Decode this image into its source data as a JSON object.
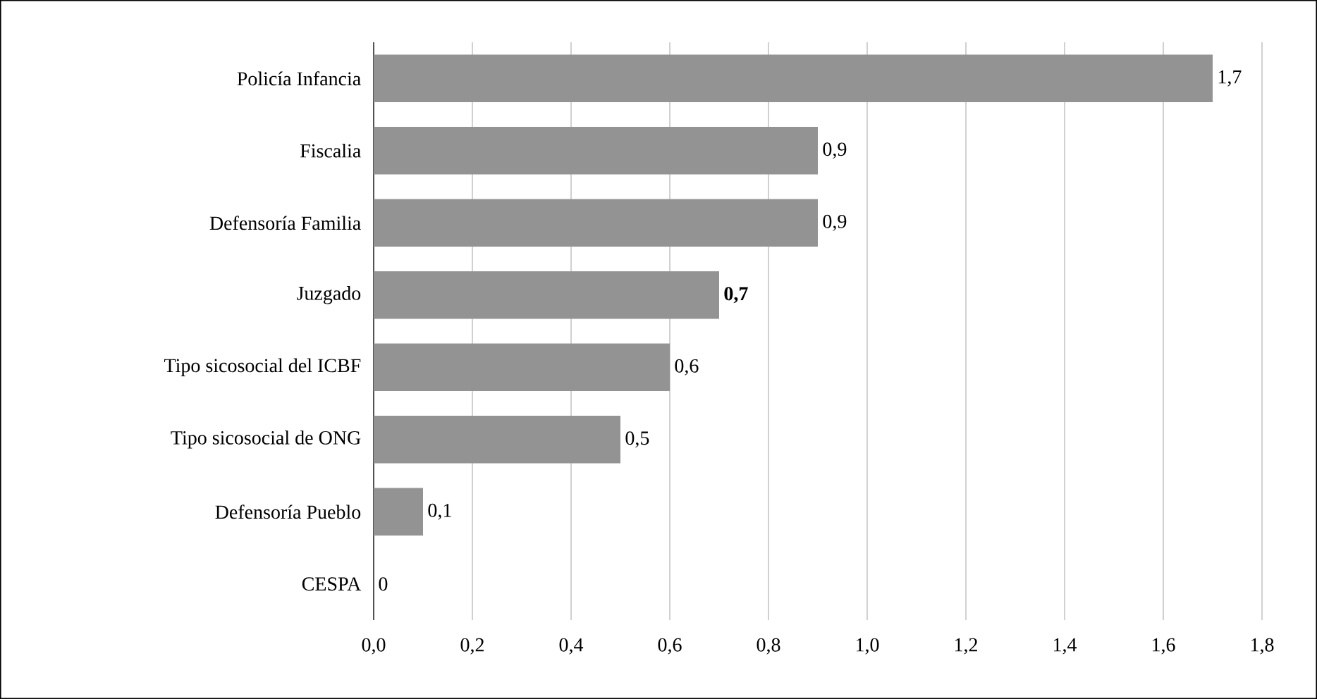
{
  "chart_data": {
    "type": "bar",
    "orientation": "horizontal",
    "categories": [
      "Policía Infancia",
      "Fiscalia",
      "Defensoría Familia",
      "Juzgado",
      "Tipo sicosocial del ICBF",
      "Tipo sicosocial de ONG",
      "Defensoría Pueblo",
      "CESPA"
    ],
    "values": [
      1.7,
      0.9,
      0.9,
      0.7,
      0.6,
      0.5,
      0.1,
      0
    ],
    "value_labels": [
      "1,7",
      "0,9",
      "0,9",
      "**0,7**",
      "0,6",
      "0,5",
      "0,1",
      "0"
    ],
    "color": "#939393",
    "xlim": [
      0,
      1.8
    ],
    "xticks": [
      {
        "value": 0,
        "label": "0,0"
      },
      {
        "value": 0.2,
        "label": "0,2"
      },
      {
        "value": 0.4,
        "label": "0,4"
      },
      {
        "value": 0.6,
        "label": "0,6"
      },
      {
        "value": 0.8,
        "label": "0,8"
      },
      {
        "value": 1.0,
        "label": "1,0"
      },
      {
        "value": 1.2,
        "label": "1,2"
      },
      {
        "value": 1.4,
        "label": "1,4"
      },
      {
        "value": 1.6,
        "label": "1,6"
      },
      {
        "value": 1.8,
        "label": "1,8"
      }
    ],
    "grid": "x"
  }
}
